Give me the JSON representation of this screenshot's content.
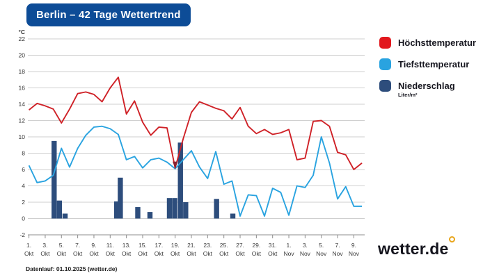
{
  "header": {
    "title": "Berlin – 42 Tage Wettertrend"
  },
  "legend": {
    "items": [
      {
        "label": "Höchsttemperatur",
        "color": "#e2181e"
      },
      {
        "label": "Tiefsttemperatur",
        "color": "#29a3e0"
      },
      {
        "label": "Niederschlag",
        "color": "#2d4d7c",
        "sublabel": "Liter/m²"
      }
    ]
  },
  "footer": {
    "datenlauf": "Datenlauf: 01.10.2025 (wetter.de)"
  },
  "logo": {
    "text": "wetter.de",
    "degree_icon_color": "#e8a51b"
  },
  "chart_data": {
    "type": "line+bar",
    "title": "Berlin – 42 Tage Wettertrend",
    "ylabel": "°C",
    "ylim": [
      -2,
      22
    ],
    "grid": true,
    "y_ticks": [
      22,
      20,
      18,
      16,
      14,
      12,
      10,
      8,
      6,
      4,
      2,
      0,
      -2
    ],
    "x_days": 42,
    "x_tick_labels": [
      {
        "day": 1,
        "line1": "1.",
        "line2": "Okt"
      },
      {
        "day": 3,
        "line1": "3.",
        "line2": "Okt"
      },
      {
        "day": 5,
        "line1": "5.",
        "line2": "Okt"
      },
      {
        "day": 7,
        "line1": "7.",
        "line2": "Okt"
      },
      {
        "day": 9,
        "line1": "9.",
        "line2": "Okt"
      },
      {
        "day": 11,
        "line1": "11.",
        "line2": "Okt"
      },
      {
        "day": 13,
        "line1": "13.",
        "line2": "Okt"
      },
      {
        "day": 15,
        "line1": "15.",
        "line2": "Okt"
      },
      {
        "day": 17,
        "line1": "17.",
        "line2": "Okt"
      },
      {
        "day": 19,
        "line1": "19.",
        "line2": "Okt"
      },
      {
        "day": 21,
        "line1": "21.",
        "line2": "Okt"
      },
      {
        "day": 23,
        "line1": "23.",
        "line2": "Okt"
      },
      {
        "day": 25,
        "line1": "25.",
        "line2": "Okt"
      },
      {
        "day": 27,
        "line1": "27.",
        "line2": "Okt"
      },
      {
        "day": 29,
        "line1": "29.",
        "line2": "Okt"
      },
      {
        "day": 31,
        "line1": "31.",
        "line2": "Okt"
      },
      {
        "day": 33,
        "line1": "1.",
        "line2": "Nov"
      },
      {
        "day": 35,
        "line1": "3.",
        "line2": "Nov"
      },
      {
        "day": 37,
        "line1": "5.",
        "line2": "Nov"
      },
      {
        "day": 39,
        "line1": "7.",
        "line2": "Nov"
      },
      {
        "day": 41,
        "line1": "9.",
        "line2": "Nov"
      }
    ],
    "series": [
      {
        "name": "Höchsttemperatur",
        "type": "line",
        "color": "#cf2127",
        "values": [
          13.3,
          14.1,
          13.8,
          13.4,
          11.7,
          13.4,
          15.3,
          15.5,
          15.2,
          14.3,
          16.0,
          17.3,
          12.8,
          14.4,
          11.8,
          10.2,
          11.2,
          11.1,
          6.2,
          9.8,
          13.0,
          14.3,
          13.9,
          13.5,
          13.2,
          12.2,
          13.6,
          11.3,
          10.4,
          10.9,
          10.3,
          10.5,
          10.9,
          7.2,
          7.4,
          11.9,
          12.0,
          11.3,
          8.1,
          7.8,
          6.0,
          6.8
        ]
      },
      {
        "name": "Tiefsttemperatur",
        "type": "line",
        "color": "#29a3e0",
        "values": [
          6.5,
          4.4,
          4.6,
          5.3,
          8.6,
          6.3,
          8.6,
          10.2,
          11.2,
          11.3,
          11.0,
          10.3,
          7.2,
          7.6,
          6.2,
          7.2,
          7.4,
          6.9,
          6.1,
          7.2,
          8.3,
          6.3,
          4.9,
          8.2,
          4.2,
          4.6,
          0.3,
          2.9,
          2.8,
          0.3,
          3.7,
          3.2,
          0.4,
          4.0,
          3.8,
          5.3,
          10.0,
          6.8,
          2.4,
          3.9,
          1.5,
          1.5
        ]
      },
      {
        "name": "Niederschlag",
        "type": "bar",
        "color": "#2d4d7c",
        "unit": "Liter/m²",
        "points": [
          {
            "x": 4.1,
            "v": 9.5
          },
          {
            "x": 4.75,
            "v": 2.2
          },
          {
            "x": 5.45,
            "v": 0.6
          },
          {
            "x": 11.8,
            "v": 2.1
          },
          {
            "x": 12.25,
            "v": 5.0
          },
          {
            "x": 14.4,
            "v": 1.4
          },
          {
            "x": 15.9,
            "v": 0.8
          },
          {
            "x": 18.3,
            "v": 2.5
          },
          {
            "x": 18.95,
            "v": 2.5
          },
          {
            "x": 19.65,
            "v": 9.3
          },
          {
            "x": 20.3,
            "v": 2.0
          },
          {
            "x": 24.1,
            "v": 2.4
          },
          {
            "x": 26.1,
            "v": 0.6
          }
        ]
      }
    ],
    "annotation": {
      "type": "min-marker",
      "day": 19,
      "value": 6.2,
      "color": "#8c2230"
    },
    "legend_position": "right"
  }
}
